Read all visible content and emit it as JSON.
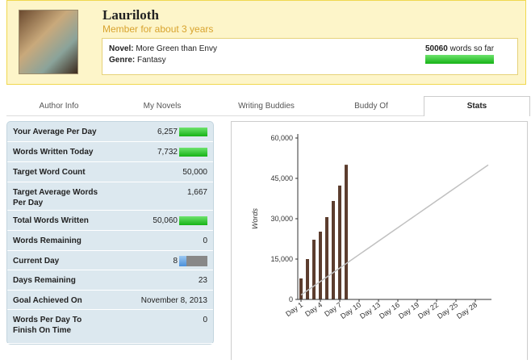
{
  "header": {
    "name": "Lauriloth",
    "member_for": "Member for about 3 years",
    "novel_label": "Novel:",
    "novel": "More Green than Envy",
    "genre_label": "Genre:",
    "genre": "Fantasy",
    "word_count": "50060",
    "word_count_suffix": "words so far"
  },
  "tabs": [
    "Author Info",
    "My Novels",
    "Writing Buddies",
    "Buddy Of",
    "Stats"
  ],
  "stats": {
    "rows": [
      {
        "label": "Your Average Per Day",
        "value": "6,257"
      },
      {
        "label": "Words Written Today",
        "value": "7,732"
      },
      {
        "label": "Target Word Count",
        "value": "50,000"
      },
      {
        "label": "Target Average Words Per Day",
        "value": "1,667"
      },
      {
        "label": "Total Words Written",
        "value": "50,060"
      },
      {
        "label": "Words Remaining",
        "value": "0"
      },
      {
        "label": "Current Day",
        "value": "8"
      },
      {
        "label": "Days Remaining",
        "value": "23"
      },
      {
        "label": "Goal Achieved On",
        "value": "November 8, 2013"
      },
      {
        "label": "Words Per Day To Finish On Time",
        "value": "0"
      }
    ]
  },
  "chart_data": {
    "type": "bar",
    "y_label": "Words",
    "categories": [
      "Day 1",
      null,
      null,
      "Day 4",
      null,
      null,
      "Day 7",
      null,
      null,
      "Day 10",
      null,
      null,
      "Day 13",
      null,
      null,
      "Day 16",
      null,
      null,
      "Day 19",
      null,
      null,
      "Day 22",
      null,
      null,
      "Day 25",
      null,
      null,
      "Day 28",
      null,
      null
    ],
    "series": [
      {
        "type": "bar",
        "color": "#5c3d2e",
        "values": [
          7800,
          15000,
          22200,
          25200,
          30600,
          36600,
          42328,
          50060,
          null,
          null,
          null,
          null,
          null,
          null,
          null,
          null,
          null,
          null,
          null,
          null,
          null,
          null,
          null,
          null,
          null,
          null,
          null,
          null,
          null,
          null
        ]
      },
      {
        "type": "line",
        "color": "#c0c0c0",
        "values": [
          1667,
          3333,
          5000,
          6667,
          8333,
          10000,
          11667,
          13333,
          15000,
          16667,
          18333,
          20000,
          21667,
          23333,
          25000,
          26667,
          28333,
          30000,
          31667,
          33333,
          35000,
          36667,
          38333,
          40000,
          41667,
          43333,
          45000,
          46667,
          48333,
          50000
        ]
      }
    ],
    "ylim": [
      0,
      60000
    ],
    "yticks": [
      0,
      {
        "value": 15000,
        "label": "15,000"
      },
      {
        "value": 30000,
        "label": "30,000"
      },
      {
        "value": 45000,
        "label": "45,000"
      },
      {
        "value": 60000,
        "label": "60,000"
      }
    ]
  }
}
